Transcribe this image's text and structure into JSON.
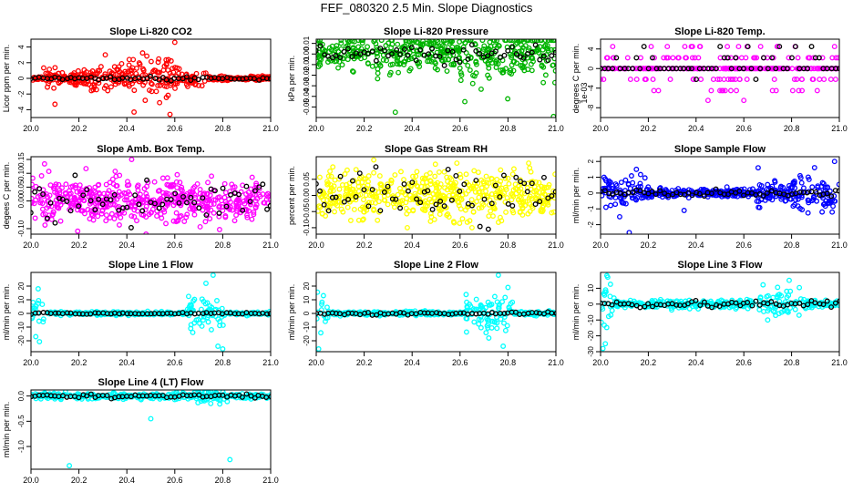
{
  "page_title": "FEF_080320  2.5 Min. Slope Diagnostics",
  "colors": {
    "co2": "#ff0000",
    "pressure": "#00b400",
    "temp": "#ff00ff",
    "box_temp": "#ff00ff",
    "rh": "#ffff00",
    "sample_flow": "#0000ff",
    "line_flow": "#00ffff",
    "overlay": "#000000"
  },
  "chart_data": [
    {
      "id": "co2",
      "type": "scatter",
      "title": "Slope Li-820 CO2",
      "xlabel": "",
      "ylabel": "Licor ppm per min.",
      "xlim": [
        20.0,
        21.0
      ],
      "ylim": [
        -5,
        5
      ],
      "xticks": [
        "20.0",
        "20.2",
        "20.4",
        "20.6",
        "20.8",
        "21.0"
      ],
      "yticks": [
        {
          "v": -4,
          "l": "-4"
        },
        {
          "v": -2,
          "l": "-2"
        },
        {
          "v": 0,
          "l": "0"
        },
        {
          "v": 2,
          "l": "2"
        },
        {
          "v": 4,
          "l": "4"
        }
      ],
      "series": [
        {
          "name": "2.5 min slope",
          "color_key": "co2"
        },
        {
          "name": "overlay",
          "color_key": "overlay"
        }
      ]
    },
    {
      "id": "pressure",
      "type": "scatter",
      "title": "Slope Li-820 Pressure",
      "xlabel": "",
      "ylabel": "kPa per min.",
      "xlim": [
        20.0,
        21.0
      ],
      "ylim": [
        -0.06,
        0.014
      ],
      "xticks": [
        "20.0",
        "20.2",
        "20.4",
        "20.6",
        "20.8",
        "21.0"
      ],
      "yticks": [
        {
          "v": -0.05,
          "l": "-0.05"
        },
        {
          "v": -0.04,
          "l": "-0.04"
        },
        {
          "v": -0.03,
          "l": "-0.03"
        },
        {
          "v": -0.02,
          "l": "-0.02"
        },
        {
          "v": -0.01,
          "l": "-0.01"
        },
        {
          "v": 0.0,
          "l": "0.00"
        },
        {
          "v": 0.01,
          "l": "0.01"
        }
      ],
      "series": [
        {
          "name": "2.5 min slope",
          "color_key": "pressure"
        },
        {
          "name": "overlay",
          "color_key": "overlay"
        }
      ]
    },
    {
      "id": "temp",
      "type": "scatter",
      "title": "Slope Li-820 Temp.",
      "xlabel": "",
      "ylabel": "degrees C per min.",
      "xlim": [
        20.0,
        21.0
      ],
      "ylim": [
        -0.01,
        0.006
      ],
      "xticks": [
        "20.0",
        "20.2",
        "20.4",
        "20.6",
        "20.8",
        "21.0"
      ],
      "yticks": [
        {
          "v": -0.008,
          "l": "-8"
        },
        {
          "v": -0.004,
          "l": "-4"
        },
        {
          "v": 0.0,
          "l": "0"
        },
        {
          "v": 0.004,
          "l": "4"
        }
      ],
      "yscale_note": "1e-03",
      "series": [
        {
          "name": "2.5 min slope",
          "color_key": "temp"
        },
        {
          "name": "overlay",
          "color_key": "overlay"
        }
      ]
    },
    {
      "id": "box_temp",
      "type": "scatter",
      "title": "Slope Amb. Box Temp.",
      "xlabel": "",
      "ylabel": "degees C per min.",
      "xlim": [
        20.0,
        21.0
      ],
      "ylim": [
        -0.12,
        0.16
      ],
      "xticks": [
        "20.0",
        "20.2",
        "20.4",
        "20.6",
        "20.8",
        "21.0"
      ],
      "yticks": [
        {
          "v": -0.1,
          "l": "-0.10"
        },
        {
          "v": 0.0,
          "l": "0.00"
        },
        {
          "v": 0.05,
          "l": "0.05"
        },
        {
          "v": 0.1,
          "l": "0.10"
        },
        {
          "v": 0.15,
          "l": "0.15"
        }
      ],
      "series": [
        {
          "name": "2.5 min slope",
          "color_key": "box_temp"
        },
        {
          "name": "overlay",
          "color_key": "overlay"
        }
      ]
    },
    {
      "id": "rh",
      "type": "scatter",
      "title": "Slope Gas Stream RH",
      "xlabel": "",
      "ylabel": "percent per min.",
      "xlim": [
        20.0,
        21.0
      ],
      "ylim": [
        -0.12,
        0.12
      ],
      "xticks": [
        "20.0",
        "20.2",
        "20.4",
        "20.6",
        "20.8",
        "21.0"
      ],
      "yticks": [
        {
          "v": -0.1,
          "l": "-0.10"
        },
        {
          "v": -0.05,
          "l": "-0.05"
        },
        {
          "v": 0.0,
          "l": "0.00"
        },
        {
          "v": 0.05,
          "l": "0.05"
        }
      ],
      "series": [
        {
          "name": "2.5 min slope",
          "color_key": "rh"
        },
        {
          "name": "overlay",
          "color_key": "overlay"
        }
      ]
    },
    {
      "id": "sample_flow",
      "type": "scatter",
      "title": "Slope Sample Flow",
      "xlabel": "",
      "ylabel": "ml/min per min.",
      "xlim": [
        20.0,
        21.0
      ],
      "ylim": [
        -2.6,
        2.3
      ],
      "xticks": [
        "20.0",
        "20.2",
        "20.4",
        "20.6",
        "20.8",
        "21.0"
      ],
      "yticks": [
        {
          "v": -2,
          "l": "-2"
        },
        {
          "v": -1,
          "l": "-1"
        },
        {
          "v": 0,
          "l": "0"
        },
        {
          "v": 1,
          "l": "1"
        },
        {
          "v": 2,
          "l": "2"
        }
      ],
      "series": [
        {
          "name": "2.5 min slope",
          "color_key": "sample_flow"
        },
        {
          "name": "overlay",
          "color_key": "overlay"
        }
      ]
    },
    {
      "id": "line1",
      "type": "scatter",
      "title": "Slope Line 1 Flow",
      "xlabel": "",
      "ylabel": "ml/min per min.",
      "xlim": [
        20.0,
        21.0
      ],
      "ylim": [
        -28,
        30
      ],
      "xticks": [
        "20.0",
        "20.2",
        "20.4",
        "20.6",
        "20.8",
        "21.0"
      ],
      "yticks": [
        {
          "v": -20,
          "l": "-20"
        },
        {
          "v": -10,
          "l": "-10"
        },
        {
          "v": 0,
          "l": "0"
        },
        {
          "v": 10,
          "l": "10"
        },
        {
          "v": 20,
          "l": "20"
        }
      ],
      "series": [
        {
          "name": "2.5 min slope",
          "color_key": "line_flow"
        },
        {
          "name": "overlay",
          "color_key": "overlay"
        }
      ]
    },
    {
      "id": "line2",
      "type": "scatter",
      "title": "Slope Line 2 Flow",
      "xlabel": "",
      "ylabel": "ml/min per min.",
      "xlim": [
        20.0,
        21.0
      ],
      "ylim": [
        -28,
        30
      ],
      "xticks": [
        "20.0",
        "20.2",
        "20.4",
        "20.6",
        "20.8",
        "21.0"
      ],
      "yticks": [
        {
          "v": -20,
          "l": "-20"
        },
        {
          "v": -10,
          "l": "-10"
        },
        {
          "v": 0,
          "l": "0"
        },
        {
          "v": 10,
          "l": "10"
        },
        {
          "v": 20,
          "l": "20"
        }
      ],
      "series": [
        {
          "name": "2.5 min slope",
          "color_key": "line_flow"
        },
        {
          "name": "overlay",
          "color_key": "overlay"
        }
      ]
    },
    {
      "id": "line3",
      "type": "scatter",
      "title": "Slope Line 3 Flow",
      "xlabel": "",
      "ylabel": "ml/min per min.",
      "xlim": [
        20.0,
        21.0
      ],
      "ylim": [
        -30,
        20
      ],
      "xticks": [
        "20.0",
        "20.2",
        "20.4",
        "20.6",
        "20.8",
        "21.0"
      ],
      "yticks": [
        {
          "v": -30,
          "l": "-30"
        },
        {
          "v": -20,
          "l": "-20"
        },
        {
          "v": -10,
          "l": "-10"
        },
        {
          "v": 0,
          "l": "0"
        },
        {
          "v": 10,
          "l": "10"
        }
      ],
      "series": [
        {
          "name": "2.5 min slope",
          "color_key": "line_flow"
        },
        {
          "name": "overlay",
          "color_key": "overlay"
        }
      ]
    },
    {
      "id": "line4",
      "type": "scatter",
      "title": "Slope Line 4 (LT) Flow",
      "xlabel": "",
      "ylabel": "ml/min per min.",
      "xlim": [
        20.0,
        21.0
      ],
      "ylim": [
        -1.45,
        0.12
      ],
      "xticks": [
        "20.0",
        "20.2",
        "20.4",
        "20.6",
        "20.8",
        "21.0"
      ],
      "yticks": [
        {
          "v": -1.0,
          "l": "-1.0"
        },
        {
          "v": -0.5,
          "l": "-0.5"
        },
        {
          "v": 0.0,
          "l": "0.0"
        }
      ],
      "series": [
        {
          "name": "2.5 min slope",
          "color_key": "line_flow"
        },
        {
          "name": "overlay",
          "color_key": "overlay"
        }
      ]
    }
  ]
}
